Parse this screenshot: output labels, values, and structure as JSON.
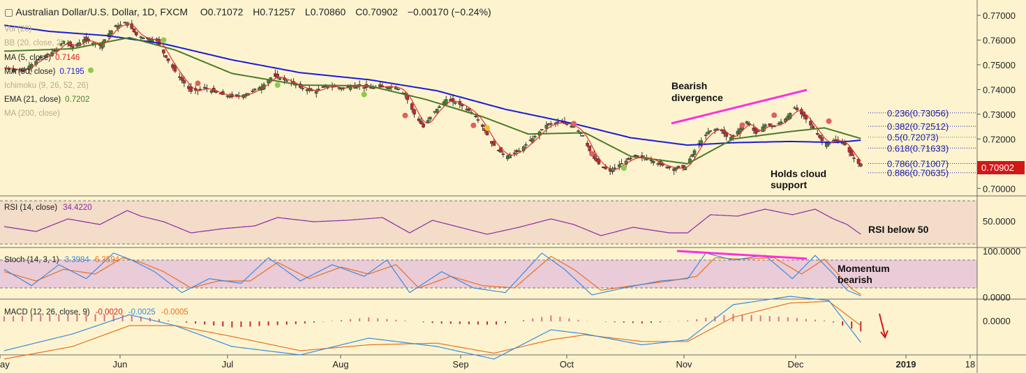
{
  "header": {
    "symbol": "Australian Dollar/U.S. Dollar, 1D, FXCM",
    "open_label": "O",
    "open": "0.71072",
    "high_label": "H",
    "high": "0.71257",
    "low_label": "L",
    "low": "0.70860",
    "close_label": "C",
    "close": "0.70902",
    "change": "−0.00170 (−0.24%)"
  },
  "legend": {
    "vol": "Vol (20)",
    "bb": "BB (20, close, 2)",
    "ma5": "MA (5, close)",
    "ma5_value": "0.7146",
    "ma50": "MA (50, close)",
    "ma50_value": "0.7195",
    "ichimoku": "Ichimoku (9, 26, 52, 26)",
    "ema21": "EMA (21, close)",
    "ema21_value": "0.7202",
    "ma200": "MA (200, close)"
  },
  "annotations": {
    "bearish_line1": "Bearish",
    "bearish_line2": "divergence",
    "cloud_line1": "Holds cloud",
    "cloud_line2": "support",
    "rsi_note": "RSI below 50",
    "momentum_line1": "Momentum",
    "momentum_line2": "bearish"
  },
  "price_axis": {
    "ticks": [
      "0.77000",
      "0.76000",
      "0.75000",
      "0.74000",
      "0.73000",
      "0.72000",
      "0.71000",
      "0.70000"
    ],
    "last_price_label": "0.70902"
  },
  "fib_levels": [
    {
      "label": "0.236(0.73056)",
      "value": 0.73056,
      "color": "#1a1aa8"
    },
    {
      "label": "0.382(0.72512)",
      "value": 0.72512,
      "color": "#1a1aa8"
    },
    {
      "label": "0.5(0.72073)",
      "value": 0.72073,
      "color": "#3f8a2a"
    },
    {
      "label": "0.618(0.71633)",
      "value": 0.71633,
      "color": "#1a1aa8"
    },
    {
      "label": "0.786(0.71007)",
      "value": 0.71007,
      "color": "#1a1aa8"
    },
    {
      "label": "0.886(0.70635)",
      "value": 0.70635,
      "color": "#1a1aa8"
    }
  ],
  "rsi": {
    "title": "RSI (14, close)",
    "value": "34.4220",
    "ticks": [
      "50.0000"
    ]
  },
  "stoch": {
    "title": "Stoch (14, 3, 1)",
    "k_value": "3.3984",
    "d_value": "6.3594",
    "ticks": [
      "100.0000",
      "0.0000"
    ]
  },
  "macd": {
    "title": "MACD (12, 26, close, 9)",
    "hist_value": "-0.0020",
    "macd_value": "-0.0025",
    "signal_value": "-0.0005",
    "ticks": [
      "0.0000"
    ]
  },
  "time_axis": [
    "ay",
    "Jun",
    "Jul",
    "Aug",
    "Sep",
    "Oct",
    "Nov",
    "Dec",
    "2019",
    "18"
  ],
  "colors": {
    "background": "#fdf4cf",
    "up": "#3d8a2a",
    "down": "#c8282e",
    "ma5": "#e03030",
    "ema21": "#4a7a2a",
    "ma50": "#1a1ad8",
    "rsi": "#8a2aa8",
    "stoch_k": "#3a8ae0",
    "stoch_d": "#e87020",
    "divergence": "#ff2ee0",
    "last_price": "#d01818"
  },
  "chart_data": {
    "type": "candlestick",
    "symbol": "AUD/USD",
    "timeframe": "1D",
    "x_range": [
      "2018-05-01",
      "2018-12-14"
    ],
    "y_range": [
      0.7,
      0.772
    ],
    "close_path": [
      [
        0,
        0.7488
      ],
      [
        8,
        0.7476
      ],
      [
        16,
        0.7528
      ],
      [
        22,
        0.7554
      ],
      [
        26,
        0.7596
      ],
      [
        30,
        0.757
      ],
      [
        35,
        0.7602
      ],
      [
        42,
        0.7578
      ],
      [
        48,
        0.765
      ],
      [
        54,
        0.7672
      ],
      [
        58,
        0.762
      ],
      [
        62,
        0.7606
      ],
      [
        67,
        0.7598
      ],
      [
        71,
        0.753
      ],
      [
        76,
        0.746
      ],
      [
        82,
        0.7392
      ],
      [
        88,
        0.7406
      ],
      [
        94,
        0.7384
      ],
      [
        100,
        0.737
      ],
      [
        106,
        0.738
      ],
      [
        113,
        0.7412
      ],
      [
        118,
        0.7456
      ],
      [
        124,
        0.7436
      ],
      [
        130,
        0.7408
      ],
      [
        136,
        0.7392
      ],
      [
        142,
        0.7416
      ],
      [
        148,
        0.7404
      ],
      [
        154,
        0.7418
      ],
      [
        160,
        0.7406
      ],
      [
        166,
        0.7412
      ],
      [
        172,
        0.741
      ],
      [
        176,
        0.7378
      ],
      [
        180,
        0.73
      ],
      [
        184,
        0.7248
      ],
      [
        188,
        0.7302
      ],
      [
        194,
        0.736
      ],
      [
        200,
        0.734
      ],
      [
        206,
        0.7302
      ],
      [
        210,
        0.725
      ],
      [
        214,
        0.7182
      ],
      [
        220,
        0.7128
      ],
      [
        226,
        0.7152
      ],
      [
        232,
        0.7202
      ],
      [
        238,
        0.7256
      ],
      [
        244,
        0.7268
      ],
      [
        250,
        0.725
      ],
      [
        254,
        0.7212
      ],
      [
        258,
        0.7132
      ],
      [
        262,
        0.7088
      ],
      [
        266,
        0.707
      ],
      [
        270,
        0.7096
      ],
      [
        276,
        0.7126
      ],
      [
        282,
        0.7124
      ],
      [
        288,
        0.7096
      ],
      [
        294,
        0.708
      ],
      [
        299,
        0.7086
      ],
      [
        304,
        0.717
      ],
      [
        309,
        0.7228
      ],
      [
        314,
        0.7244
      ],
      [
        318,
        0.7198
      ],
      [
        322,
        0.7232
      ],
      [
        326,
        0.727
      ],
      [
        330,
        0.7222
      ],
      [
        334,
        0.7258
      ],
      [
        338,
        0.725
      ],
      [
        343,
        0.7282
      ],
      [
        347,
        0.7326
      ],
      [
        351,
        0.7292
      ],
      [
        355,
        0.7244
      ],
      [
        360,
        0.718
      ],
      [
        364,
        0.7194
      ],
      [
        368,
        0.719
      ],
      [
        372,
        0.7132
      ],
      [
        376,
        0.709
      ]
    ],
    "ma50_path": [
      [
        0,
        0.766
      ],
      [
        20,
        0.7635
      ],
      [
        45,
        0.7618
      ],
      [
        70,
        0.7585
      ],
      [
        100,
        0.752
      ],
      [
        130,
        0.7468
      ],
      [
        160,
        0.744
      ],
      [
        190,
        0.7395
      ],
      [
        220,
        0.732
      ],
      [
        250,
        0.7262
      ],
      [
        275,
        0.7205
      ],
      [
        300,
        0.7175
      ],
      [
        320,
        0.7185
      ],
      [
        345,
        0.719
      ],
      [
        365,
        0.7186
      ],
      [
        376,
        0.7195
      ]
    ],
    "ema21_path": [
      [
        0,
        0.7555
      ],
      [
        30,
        0.7565
      ],
      [
        55,
        0.761
      ],
      [
        75,
        0.756
      ],
      [
        100,
        0.7465
      ],
      [
        130,
        0.7418
      ],
      [
        160,
        0.7415
      ],
      [
        185,
        0.736
      ],
      [
        210,
        0.729
      ],
      [
        230,
        0.722
      ],
      [
        255,
        0.7225
      ],
      [
        275,
        0.713
      ],
      [
        300,
        0.71
      ],
      [
        320,
        0.72
      ],
      [
        345,
        0.723
      ],
      [
        360,
        0.7245
      ],
      [
        376,
        0.7202
      ]
    ],
    "rsi_path": [
      [
        0,
        45
      ],
      [
        14,
        38
      ],
      [
        28,
        56
      ],
      [
        42,
        48
      ],
      [
        54,
        68
      ],
      [
        60,
        60
      ],
      [
        70,
        52
      ],
      [
        82,
        36
      ],
      [
        96,
        42
      ],
      [
        110,
        46
      ],
      [
        120,
        58
      ],
      [
        136,
        52
      ],
      [
        150,
        54
      ],
      [
        166,
        58
      ],
      [
        178,
        36
      ],
      [
        188,
        54
      ],
      [
        200,
        44
      ],
      [
        212,
        34
      ],
      [
        226,
        44
      ],
      [
        240,
        56
      ],
      [
        250,
        48
      ],
      [
        262,
        32
      ],
      [
        276,
        44
      ],
      [
        292,
        36
      ],
      [
        300,
        36
      ],
      [
        310,
        62
      ],
      [
        322,
        60
      ],
      [
        334,
        70
      ],
      [
        346,
        62
      ],
      [
        356,
        70
      ],
      [
        364,
        56
      ],
      [
        370,
        48
      ],
      [
        376,
        34
      ]
    ],
    "stoch_k_path": [
      [
        0,
        60
      ],
      [
        12,
        25
      ],
      [
        24,
        70
      ],
      [
        36,
        40
      ],
      [
        48,
        95
      ],
      [
        56,
        80
      ],
      [
        66,
        55
      ],
      [
        78,
        10
      ],
      [
        90,
        40
      ],
      [
        104,
        30
      ],
      [
        116,
        85
      ],
      [
        130,
        35
      ],
      [
        144,
        70
      ],
      [
        158,
        45
      ],
      [
        168,
        80
      ],
      [
        178,
        10
      ],
      [
        192,
        55
      ],
      [
        206,
        20
      ],
      [
        220,
        10
      ],
      [
        236,
        95
      ],
      [
        246,
        60
      ],
      [
        258,
        5
      ],
      [
        272,
        20
      ],
      [
        288,
        35
      ],
      [
        300,
        40
      ],
      [
        308,
        95
      ],
      [
        320,
        80
      ],
      [
        334,
        90
      ],
      [
        346,
        40
      ],
      [
        356,
        90
      ],
      [
        364,
        50
      ],
      [
        370,
        15
      ],
      [
        376,
        3
      ]
    ],
    "stoch_d_path": [
      [
        0,
        55
      ],
      [
        14,
        35
      ],
      [
        26,
        60
      ],
      [
        40,
        50
      ],
      [
        52,
        85
      ],
      [
        60,
        75
      ],
      [
        70,
        55
      ],
      [
        82,
        20
      ],
      [
        94,
        35
      ],
      [
        108,
        35
      ],
      [
        120,
        75
      ],
      [
        134,
        40
      ],
      [
        148,
        65
      ],
      [
        160,
        50
      ],
      [
        172,
        70
      ],
      [
        182,
        20
      ],
      [
        196,
        45
      ],
      [
        210,
        25
      ],
      [
        224,
        20
      ],
      [
        240,
        88
      ],
      [
        250,
        60
      ],
      [
        262,
        15
      ],
      [
        276,
        25
      ],
      [
        292,
        35
      ],
      [
        304,
        45
      ],
      [
        312,
        85
      ],
      [
        324,
        82
      ],
      [
        338,
        85
      ],
      [
        350,
        50
      ],
      [
        360,
        82
      ],
      [
        366,
        50
      ],
      [
        372,
        18
      ],
      [
        376,
        6
      ]
    ],
    "macd_path": [
      [
        0,
        -0.0035
      ],
      [
        30,
        -0.0015
      ],
      [
        55,
        0.0008
      ],
      [
        75,
        -0.0005
      ],
      [
        100,
        -0.003
      ],
      [
        130,
        -0.004
      ],
      [
        160,
        -0.002
      ],
      [
        190,
        -0.003
      ],
      [
        215,
        -0.0045
      ],
      [
        240,
        -0.001
      ],
      [
        255,
        -0.0015
      ],
      [
        280,
        -0.0028
      ],
      [
        300,
        -0.0022
      ],
      [
        320,
        0.002
      ],
      [
        345,
        0.003
      ],
      [
        362,
        0.0025
      ],
      [
        376,
        -0.0025
      ]
    ],
    "signal_path": [
      [
        0,
        -0.0045
      ],
      [
        30,
        -0.003
      ],
      [
        55,
        -0.0005
      ],
      [
        75,
        -0.0005
      ],
      [
        100,
        -0.0018
      ],
      [
        130,
        -0.0035
      ],
      [
        160,
        -0.0028
      ],
      [
        190,
        -0.0026
      ],
      [
        215,
        -0.0038
      ],
      [
        240,
        -0.0022
      ],
      [
        255,
        -0.0016
      ],
      [
        280,
        -0.0024
      ],
      [
        300,
        -0.0024
      ],
      [
        320,
        0.0005
      ],
      [
        345,
        0.0022
      ],
      [
        362,
        0.0024
      ],
      [
        376,
        -0.0005
      ]
    ]
  }
}
